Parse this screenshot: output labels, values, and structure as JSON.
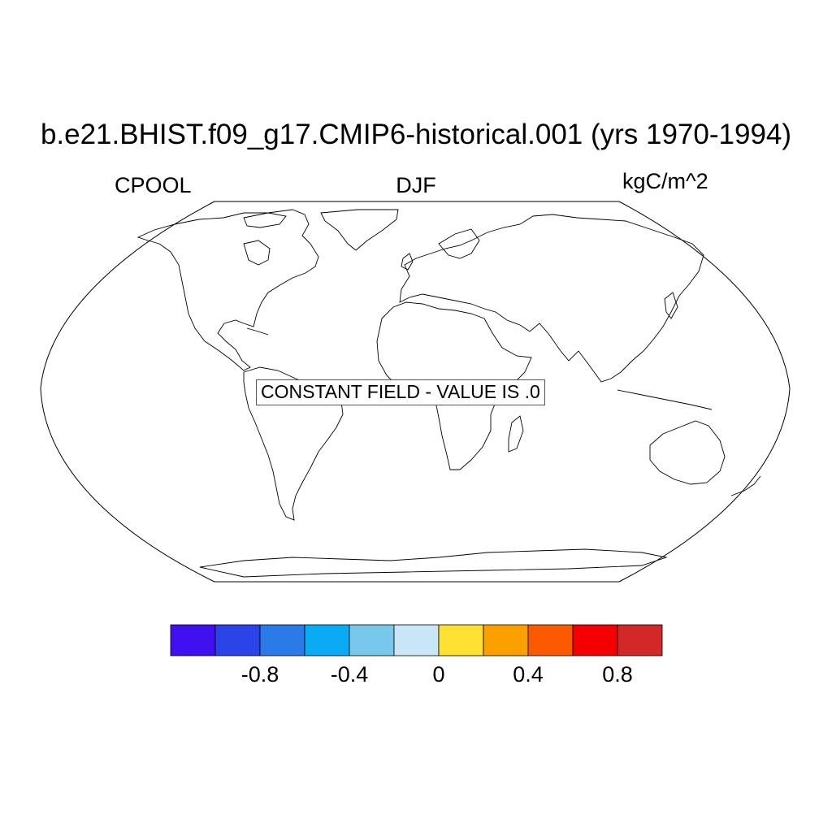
{
  "title": "b.e21.BHIST.f09_g17.CMIP6-historical.001 (yrs 1970-1994)",
  "variable": "CPOOL",
  "season": "DJF",
  "units": "kgC/m^2",
  "annotation": "CONSTANT FIELD - VALUE IS .0",
  "map": {
    "projection": "robinson",
    "coastline_color": "#000000"
  },
  "colorbar": {
    "colors": [
      "#4010f0",
      "#2a44e8",
      "#2a7ae8",
      "#0aaaf5",
      "#78c8ec",
      "#c8e6f6",
      "#fce032",
      "#fca000",
      "#fc5a00",
      "#f50000",
      "#d22828"
    ],
    "tick_labels": [
      "-0.8",
      "-0.4",
      "0",
      "0.4",
      "0.8"
    ],
    "tick_values": [
      -0.8,
      -0.4,
      0,
      0.4,
      0.8
    ]
  }
}
